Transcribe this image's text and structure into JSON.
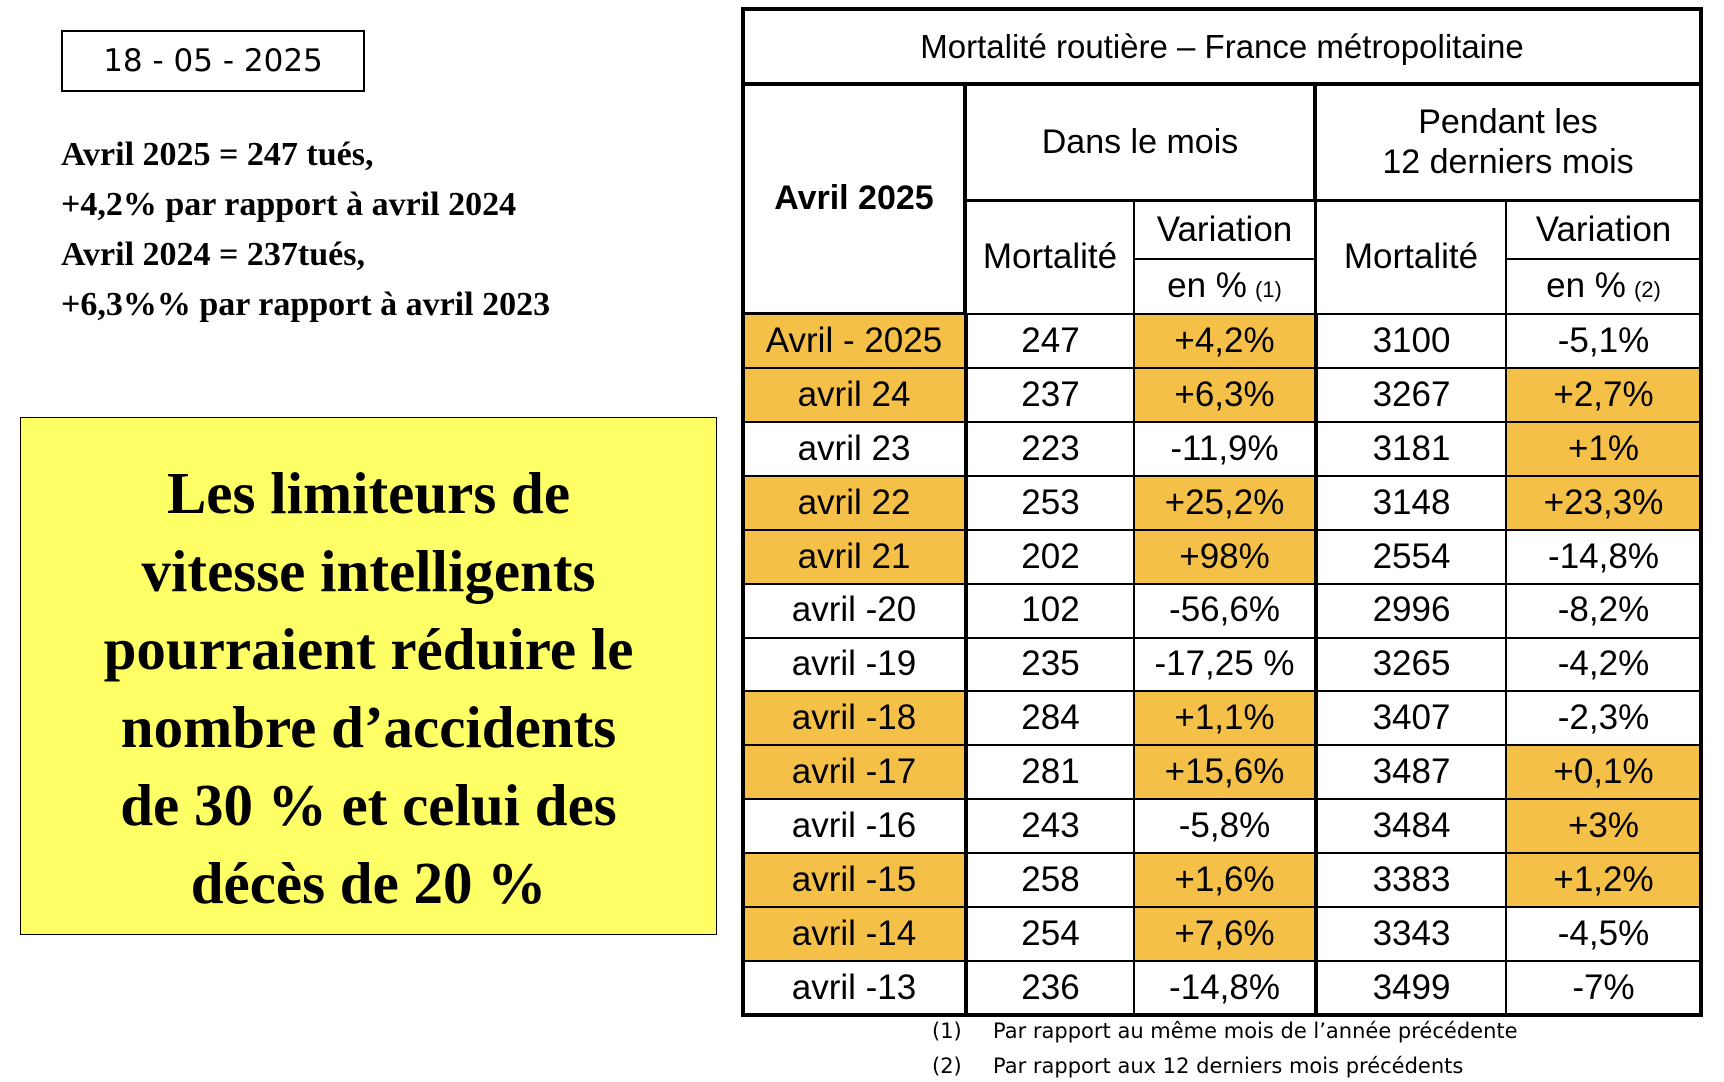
{
  "date": "18 - 05 - 2025",
  "summary": [
    "Avril 2025 = 247 tués,",
    "+4,2% par rapport à avril 2024",
    "Avril 2024 = 237tués,",
    "+6,3%% par rapport à avril 2023"
  ],
  "callout": {
    "lines": [
      "Les limiteurs de",
      "vitesse intelligents",
      "pourraient réduire le",
      "nombre d’accidents",
      "de 30 % et celui des",
      "décès de 20 %"
    ],
    "background": "#ffff66"
  },
  "table": {
    "title": "Mortalité routière – France métropolitaine",
    "period": "Avril 2025",
    "groups": [
      {
        "title_lines": [
          "Dans le mois"
        ],
        "mortality": "Mortalité",
        "variation": "Variation",
        "unit": "en %",
        "note": "(1)"
      },
      {
        "title_lines": [
          "Pendant les",
          "12 derniers mois"
        ],
        "mortality": "Mortalité",
        "variation": "Variation",
        "unit": "en %",
        "note": "(2)"
      }
    ],
    "highlight_color": "#f4c048",
    "rows": [
      {
        "cells": [
          "Avril - 2025",
          247,
          "+4,2%",
          3100,
          "-5,1%"
        ],
        "highlight": [
          true,
          false,
          true,
          false,
          false
        ]
      },
      {
        "cells": [
          "avril 24",
          237,
          "+6,3%",
          3267,
          "+2,7%"
        ],
        "highlight": [
          true,
          false,
          true,
          false,
          true
        ]
      },
      {
        "cells": [
          "avril 23",
          223,
          "-11,9%",
          3181,
          "+1%"
        ],
        "highlight": [
          false,
          false,
          false,
          false,
          true
        ]
      },
      {
        "cells": [
          "avril 22",
          253,
          "+25,2%",
          3148,
          "+23,3%"
        ],
        "highlight": [
          true,
          false,
          true,
          false,
          true
        ]
      },
      {
        "cells": [
          "avril 21",
          202,
          "+98%",
          2554,
          "-14,8%"
        ],
        "highlight": [
          true,
          false,
          true,
          false,
          false
        ]
      },
      {
        "cells": [
          "avril -20",
          102,
          "-56,6%",
          2996,
          "-8,2%"
        ],
        "highlight": [
          false,
          false,
          false,
          false,
          false
        ]
      },
      {
        "cells": [
          "avril -19",
          235,
          "-17,25 %",
          3265,
          "-4,2%"
        ],
        "highlight": [
          false,
          false,
          false,
          false,
          false
        ]
      },
      {
        "cells": [
          "avril -18",
          284,
          "+1,1%",
          3407,
          "-2,3%"
        ],
        "highlight": [
          true,
          false,
          true,
          false,
          false
        ]
      },
      {
        "cells": [
          "avril -17",
          281,
          "+15,6%",
          3487,
          "+0,1%"
        ],
        "highlight": [
          true,
          false,
          true,
          false,
          true
        ]
      },
      {
        "cells": [
          "avril -16",
          243,
          "-5,8%",
          3484,
          "+3%"
        ],
        "highlight": [
          false,
          false,
          false,
          false,
          true
        ]
      },
      {
        "cells": [
          "avril -15",
          258,
          "+1,6%",
          3383,
          "+1,2%"
        ],
        "highlight": [
          true,
          false,
          true,
          false,
          true
        ]
      },
      {
        "cells": [
          "avril -14",
          254,
          "+7,6%",
          3343,
          "-4,5%"
        ],
        "highlight": [
          true,
          false,
          true,
          false,
          false
        ]
      },
      {
        "cells": [
          "avril -13",
          236,
          "-14,8%",
          3499,
          "-7%"
        ],
        "highlight": [
          false,
          false,
          false,
          false,
          false
        ]
      }
    ]
  },
  "footnotes": [
    {
      "marker": "(1)",
      "text": "Par rapport au même mois de l’année précédente"
    },
    {
      "marker": "(2)",
      "text": "Par rapport aux 12 derniers mois précédents"
    }
  ]
}
